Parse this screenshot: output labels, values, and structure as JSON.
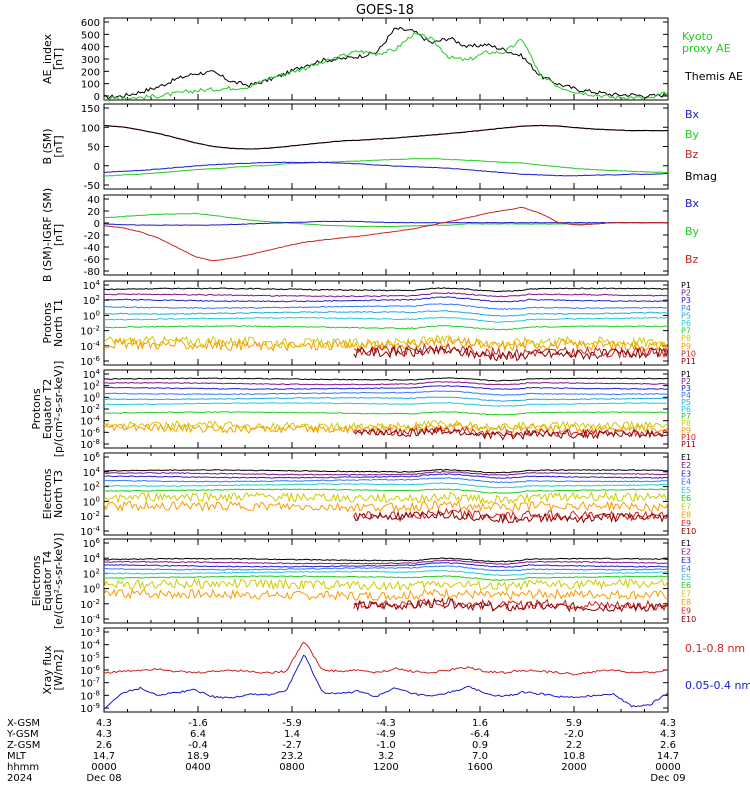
{
  "title": "GOES-18",
  "chart_data": [
    {
      "type": "line",
      "ylabel": [
        "AE_index",
        "[nT]"
      ],
      "yticks": [
        "600",
        "500",
        "400",
        "300",
        "200",
        "100",
        "0"
      ],
      "ylim": [
        0,
        620
      ],
      "legend": [
        {
          "label": "Kyoto",
          "color": "#22cc22"
        },
        {
          "label": "proxy AE",
          "color": "#22cc22"
        },
        {
          "label": "Themis AE",
          "color": "#000000"
        }
      ],
      "series": [
        {
          "color": "#000000",
          "values": [
            20,
            30,
            60,
            100,
            160,
            200,
            210,
            140,
            110,
            150,
            200,
            260,
            300,
            310,
            330,
            360,
            540,
            520,
            430,
            470,
            400,
            420,
            380,
            330,
            180,
            120,
            80,
            60,
            40,
            40,
            30,
            40
          ]
        },
        {
          "color": "#22cc22",
          "values": [
            10,
            15,
            20,
            30,
            50,
            70,
            80,
            90,
            100,
            160,
            200,
            240,
            280,
            330,
            370,
            350,
            380,
            500,
            460,
            320,
            300,
            360,
            360,
            460,
            180,
            100,
            60,
            40,
            20,
            20,
            10,
            60
          ]
        }
      ]
    },
    {
      "type": "line",
      "ylabel": [
        "B (SM)",
        "[nT]"
      ],
      "yticks": [
        "150",
        "100",
        "50",
        "0",
        "-50"
      ],
      "ylim": [
        -60,
        170
      ],
      "legend": [
        {
          "label": "Bx",
          "color": "#1a1acc"
        },
        {
          "label": "By",
          "color": "#22cc22"
        },
        {
          "label": "Bz",
          "color": "#cc2222"
        },
        {
          "label": "Bmag",
          "color": "#000000"
        }
      ],
      "series": [
        {
          "color": "#cc2222",
          "values": [
            112,
            108,
            100,
            90,
            78,
            65,
            55,
            50,
            48,
            50,
            55,
            60,
            65,
            70,
            72,
            75,
            78,
            82,
            86,
            90,
            95,
            100,
            105,
            110,
            112,
            110,
            106,
            102,
            100,
            98,
            98,
            98
          ]
        },
        {
          "color": "#000000",
          "values": [
            112,
            108,
            100,
            90,
            78,
            65,
            55,
            50,
            48,
            50,
            55,
            60,
            65,
            70,
            72,
            75,
            78,
            82,
            86,
            90,
            95,
            100,
            105,
            110,
            112,
            110,
            106,
            102,
            100,
            98,
            98,
            98
          ]
        },
        {
          "color": "#22cc22",
          "values": [
            -25,
            -22,
            -20,
            -16,
            -12,
            -8,
            -5,
            -2,
            2,
            4,
            8,
            10,
            12,
            14,
            16,
            18,
            20,
            22,
            22,
            20,
            18,
            15,
            12,
            10,
            5,
            0,
            -5,
            -8,
            -10,
            -12,
            -14,
            -15
          ]
        },
        {
          "color": "#1a1acc",
          "values": [
            -15,
            -12,
            -10,
            -6,
            -2,
            2,
            6,
            8,
            10,
            12,
            12,
            12,
            12,
            10,
            8,
            5,
            2,
            0,
            -2,
            -4,
            -8,
            -12,
            -16,
            -20,
            -22,
            -24,
            -24,
            -22,
            -22,
            -20,
            -20,
            -18
          ]
        }
      ]
    },
    {
      "type": "line",
      "ylabel": [
        "B (SM)-IGRF (SM)",
        "[nT]"
      ],
      "yticks": [
        "40",
        "20",
        "0",
        "-20",
        "-40",
        "-60",
        "-80"
      ],
      "ylim": [
        -85,
        45
      ],
      "legend": [
        {
          "label": "Bx",
          "color": "#1a1acc"
        },
        {
          "label": "By",
          "color": "#22cc22"
        },
        {
          "label": "Bz",
          "color": "#cc2222"
        }
      ],
      "series": [
        {
          "color": "#22cc22",
          "values": [
            8,
            10,
            12,
            14,
            14,
            15,
            12,
            8,
            4,
            2,
            0,
            -2,
            -4,
            -5,
            -6,
            -6,
            -6,
            -5,
            -4,
            -4,
            -2,
            -2,
            -2,
            -2,
            -2,
            -2,
            -2,
            -2,
            0,
            0,
            0,
            0
          ]
        },
        {
          "color": "#1a1acc",
          "values": [
            -2,
            -3,
            -4,
            -4,
            -4,
            -4,
            -4,
            -3,
            -2,
            -1,
            0,
            1,
            2,
            2,
            2,
            1,
            0,
            0,
            0,
            0,
            0,
            0,
            0,
            0,
            0,
            0,
            0,
            0,
            0,
            0,
            0,
            0
          ]
        },
        {
          "color": "#cc2222",
          "values": [
            -5,
            -8,
            -15,
            -25,
            -40,
            -55,
            -62,
            -58,
            -52,
            -45,
            -38,
            -32,
            -28,
            -25,
            -22,
            -18,
            -14,
            -10,
            -4,
            2,
            8,
            15,
            20,
            25,
            15,
            0,
            -4,
            -2,
            0,
            0,
            0,
            0
          ]
        }
      ]
    },
    {
      "type": "line",
      "ylabel": [
        "Protons",
        "North T1"
      ],
      "yticks": [
        "10^4",
        "10^2",
        "10^0",
        "10^-2",
        "10^-4",
        "10^-6"
      ],
      "ylim": [
        -6,
        4
      ],
      "legend": [
        {
          "label": "P1",
          "color": "#000000"
        },
        {
          "label": "P2",
          "color": "#881188"
        },
        {
          "label": "P3",
          "color": "#2222cc"
        },
        {
          "label": "P4",
          "color": "#3377ff"
        },
        {
          "label": "P5",
          "color": "#22aadd"
        },
        {
          "label": "P6",
          "color": "#22cccc"
        },
        {
          "label": "P7",
          "color": "#22cc22"
        },
        {
          "label": "P8",
          "color": "#cccc00"
        },
        {
          "label": "P9",
          "color": "#ff9900"
        },
        {
          "label": "P10",
          "color": "#cc2222"
        },
        {
          "label": "P11",
          "color": "#880000"
        }
      ],
      "levels": [
        3.0,
        2.3,
        1.7,
        0.9,
        0.2,
        -0.5,
        -1.5,
        -3.3,
        -3.6,
        -4.4,
        -4.6
      ]
    },
    {
      "type": "line",
      "ylabel": [
        "Protons",
        "Equator T2",
        "[p/(cm²-s-sr-keV)]"
      ],
      "yticks": [
        "10^4",
        "10^2",
        "10^0",
        "10^-2",
        "10^-4",
        "10^-6",
        "10^-8"
      ],
      "ylim": [
        -8,
        4
      ],
      "legend": [
        {
          "label": "P1",
          "color": "#000000"
        },
        {
          "label": "P2",
          "color": "#881188"
        },
        {
          "label": "P3",
          "color": "#2222cc"
        },
        {
          "label": "P4",
          "color": "#3377ff"
        },
        {
          "label": "P5",
          "color": "#22aadd"
        },
        {
          "label": "P6",
          "color": "#22cccc"
        },
        {
          "label": "P7",
          "color": "#22cc22"
        },
        {
          "label": "P8",
          "color": "#cccc00"
        },
        {
          "label": "P9",
          "color": "#ff9900"
        },
        {
          "label": "P10",
          "color": "#cc2222"
        },
        {
          "label": "P11",
          "color": "#880000"
        }
      ],
      "levels": [
        2.6,
        1.9,
        1.2,
        0.4,
        -0.4,
        -1.2,
        -2.6,
        -4.6,
        -5.0,
        -5.6,
        -5.8
      ]
    },
    {
      "type": "line",
      "ylabel": [
        "Electrons",
        "North T3"
      ],
      "yticks": [
        "10^6",
        "10^4",
        "10^2",
        "10^0",
        "10^-2",
        "10^-4"
      ],
      "ylim": [
        -4,
        7
      ],
      "legend": [
        {
          "label": "E1",
          "color": "#000000"
        },
        {
          "label": "E2",
          "color": "#881188"
        },
        {
          "label": "E3",
          "color": "#2222cc"
        },
        {
          "label": "E4",
          "color": "#3377ff"
        },
        {
          "label": "E5",
          "color": "#22cccc"
        },
        {
          "label": "E6",
          "color": "#22cc22"
        },
        {
          "label": "E7",
          "color": "#cccc00"
        },
        {
          "label": "E8",
          "color": "#ff9900"
        },
        {
          "label": "E9",
          "color": "#cc2222"
        },
        {
          "label": "E10",
          "color": "#880000"
        }
      ],
      "levels": [
        4.6,
        4.2,
        3.8,
        3.3,
        2.7,
        2.0,
        1.0,
        -0.2,
        -1.4,
        -1.6
      ]
    },
    {
      "type": "line",
      "ylabel": [
        "Electrons",
        "Equator T4",
        "[e/(cm²-s-sr-keV)]"
      ],
      "yticks": [
        "10^6",
        "10^4",
        "10^2",
        "10^0",
        "10^-2",
        "10^-4"
      ],
      "ylim": [
        -4,
        7
      ],
      "legend": [
        {
          "label": "E1",
          "color": "#000000"
        },
        {
          "label": "E2",
          "color": "#881188"
        },
        {
          "label": "E3",
          "color": "#2222cc"
        },
        {
          "label": "E4",
          "color": "#3377ff"
        },
        {
          "label": "E5",
          "color": "#22cccc"
        },
        {
          "label": "E6",
          "color": "#22cc22"
        },
        {
          "label": "E7",
          "color": "#cccc00"
        },
        {
          "label": "E8",
          "color": "#ff9900"
        },
        {
          "label": "E9",
          "color": "#cc2222"
        },
        {
          "label": "E10",
          "color": "#880000"
        }
      ],
      "levels": [
        4.3,
        3.9,
        3.5,
        3.1,
        2.6,
        2.0,
        1.0,
        -0.3,
        -1.6,
        -1.8
      ]
    },
    {
      "type": "line",
      "ylabel": [
        "Xray flux",
        "[W/m2]"
      ],
      "yticks": [
        "10^-3",
        "10^-4",
        "10^-5",
        "10^-6",
        "10^-7",
        "10^-8",
        "10^-9"
      ],
      "ylim": [
        -9,
        -3
      ],
      "legend": [
        {
          "label": "0.1-0.8 nm",
          "color": "#cc2222"
        },
        {
          "label": "0.05-0.4 nm",
          "color": "#1a1acc"
        }
      ],
      "series": [
        {
          "color": "#cc2222",
          "values": [
            -6.2,
            -6.1,
            -6.0,
            -5.9,
            -6.1,
            -6.2,
            -6.1,
            -6.0,
            -6.1,
            -6.2,
            -6.1,
            -3.9,
            -6.0,
            -6.1,
            -6.0,
            -6.2,
            -5.9,
            -6.1,
            -6.2,
            -6.0,
            -5.8,
            -6.1,
            -6.2,
            -6.0,
            -6.1,
            -6.2,
            -6.3,
            -6.1,
            -6.0,
            -6.2,
            -6.2,
            -6.0
          ]
        },
        {
          "color": "#1a1acc",
          "values": [
            -8.8,
            -7.6,
            -7.3,
            -7.8,
            -7.6,
            -7.4,
            -7.9,
            -8.0,
            -7.7,
            -7.8,
            -7.5,
            -4.9,
            -7.6,
            -7.7,
            -7.5,
            -7.9,
            -7.3,
            -7.7,
            -7.9,
            -7.6,
            -7.2,
            -7.7,
            -7.9,
            -7.6,
            -7.7,
            -7.9,
            -8.0,
            -7.8,
            -7.7,
            -8.6,
            -8.5,
            -7.6
          ]
        }
      ]
    }
  ],
  "footer": {
    "row_labels": [
      "X-GSM",
      "Y-GSM",
      "Z-GSM",
      "MLT",
      "hhmm",
      "2024"
    ],
    "columns": [
      {
        "x_gsm": "4.3",
        "y_gsm": "4.3",
        "z_gsm": "2.6",
        "mlt": "14.7",
        "hhmm": "0000",
        "date": "Dec 08"
      },
      {
        "x_gsm": "-1.6",
        "y_gsm": "6.4",
        "z_gsm": "-0.4",
        "mlt": "18.9",
        "hhmm": "0400",
        "date": ""
      },
      {
        "x_gsm": "-5.9",
        "y_gsm": "1.4",
        "z_gsm": "-2.7",
        "mlt": "23.2",
        "hhmm": "0800",
        "date": ""
      },
      {
        "x_gsm": "-4.3",
        "y_gsm": "-4.9",
        "z_gsm": "-1.0",
        "mlt": "3.2",
        "hhmm": "1200",
        "date": ""
      },
      {
        "x_gsm": "1.6",
        "y_gsm": "-6.4",
        "z_gsm": "0.9",
        "mlt": "7.0",
        "hhmm": "1600",
        "date": ""
      },
      {
        "x_gsm": "5.9",
        "y_gsm": "-2.0",
        "z_gsm": "2.2",
        "mlt": "10.8",
        "hhmm": "2000",
        "date": ""
      },
      {
        "x_gsm": "4.3",
        "y_gsm": "4.3",
        "z_gsm": "2.6",
        "mlt": "14.7",
        "hhmm": "0000",
        "date": "Dec 09"
      }
    ]
  }
}
